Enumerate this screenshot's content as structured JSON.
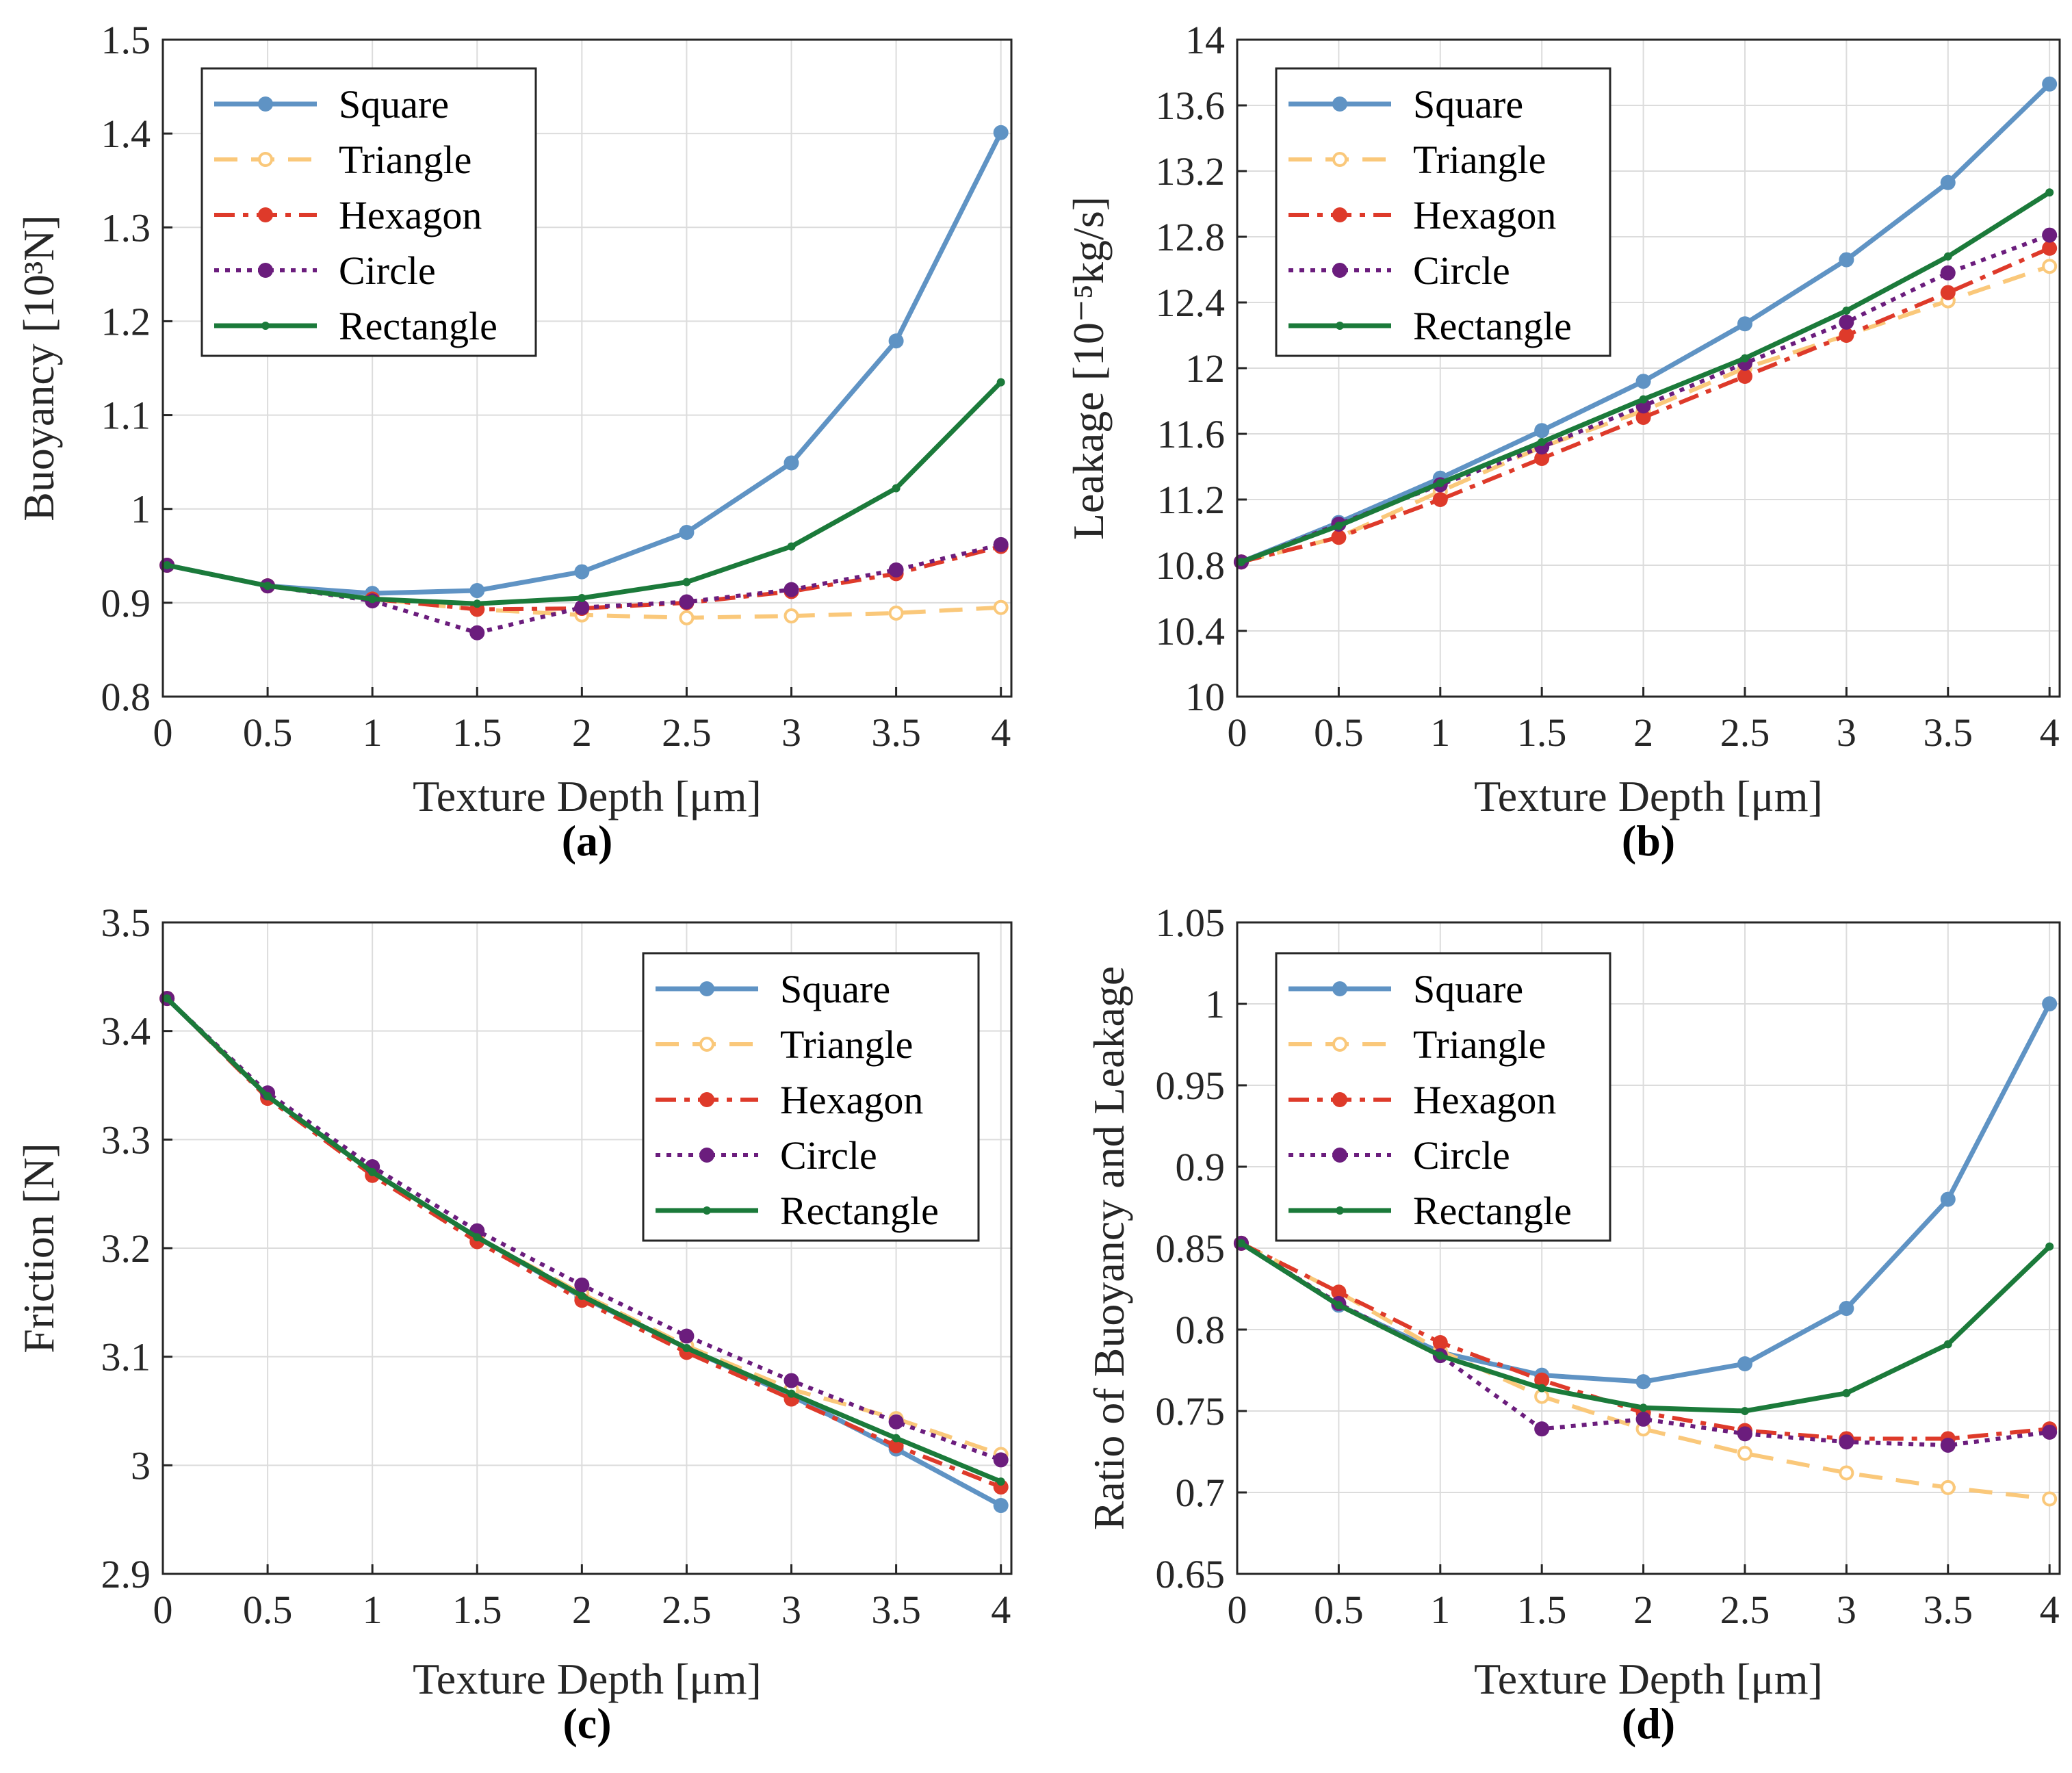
{
  "chart_data": [
    {
      "type": "line",
      "caption": "(a)",
      "xlabel": "Texture Depth [μm]",
      "ylabel": "Buoyancy [10³N]",
      "xlim": [
        0,
        4.05
      ],
      "ylim": [
        0.8,
        1.5
      ],
      "xticks": [
        "0",
        "0.5",
        "1",
        "1.5",
        "2",
        "2.5",
        "3",
        "3.5",
        "4"
      ],
      "yticks": [
        "0.8",
        "0.9",
        "1",
        "1.1",
        "1.2",
        "1.3",
        "1.4",
        "1.5"
      ],
      "legend_position": "top-left",
      "x": [
        0.02,
        0.5,
        1.0,
        1.5,
        2.0,
        2.5,
        3.0,
        3.5,
        4.0
      ],
      "series": [
        {
          "name": "Square",
          "values": [
            0.94,
            0.918,
            0.91,
            0.913,
            0.933,
            0.975,
            1.049,
            1.179,
            1.401
          ]
        },
        {
          "name": "Triangle",
          "values": [
            0.94,
            0.918,
            0.904,
            0.893,
            0.887,
            0.884,
            0.886,
            0.889,
            0.895
          ]
        },
        {
          "name": "Hexagon",
          "values": [
            0.94,
            0.918,
            0.904,
            0.893,
            0.894,
            0.9,
            0.912,
            0.931,
            0.96
          ]
        },
        {
          "name": "Circle",
          "values": [
            0.94,
            0.918,
            0.902,
            0.868,
            0.895,
            0.901,
            0.914,
            0.935,
            0.962
          ]
        },
        {
          "name": "Rectangle",
          "values": [
            0.94,
            0.918,
            0.904,
            0.899,
            0.905,
            0.922,
            0.96,
            1.022,
            1.135
          ]
        }
      ]
    },
    {
      "type": "line",
      "caption": "(b)",
      "xlabel": "Texture Depth [μm]",
      "ylabel": "Leakage [10⁻⁵kg/s]",
      "xlim": [
        0,
        4.05
      ],
      "ylim": [
        10,
        14
      ],
      "xticks": [
        "0",
        "0.5",
        "1",
        "1.5",
        "2",
        "2.5",
        "3",
        "3.5",
        "4"
      ],
      "yticks": [
        "10",
        "10.4",
        "10.8",
        "11.2",
        "11.6",
        "12",
        "12.4",
        "12.8",
        "13.2",
        "13.6",
        "14"
      ],
      "legend_position": "top-left",
      "x": [
        0.02,
        0.5,
        1.0,
        1.5,
        2.0,
        2.5,
        3.0,
        3.5,
        4.0
      ],
      "series": [
        {
          "name": "Square",
          "values": [
            10.82,
            11.06,
            11.33,
            11.62,
            11.92,
            12.27,
            12.66,
            13.13,
            13.73
          ]
        },
        {
          "name": "Triangle",
          "values": [
            10.82,
            10.97,
            11.25,
            11.52,
            11.74,
            12.0,
            12.2,
            12.41,
            12.62
          ]
        },
        {
          "name": "Hexagon",
          "values": [
            10.82,
            10.97,
            11.2,
            11.45,
            11.7,
            11.95,
            12.2,
            12.46,
            12.73
          ]
        },
        {
          "name": "Circle",
          "values": [
            10.82,
            11.05,
            11.29,
            11.52,
            11.77,
            12.03,
            12.28,
            12.58,
            12.81
          ]
        },
        {
          "name": "Rectangle",
          "values": [
            10.82,
            11.04,
            11.3,
            11.55,
            11.81,
            12.06,
            12.35,
            12.68,
            13.07
          ]
        }
      ]
    },
    {
      "type": "line",
      "caption": "(c)",
      "xlabel": "Texture Depth [μm]",
      "ylabel": "Friction [N]",
      "xlim": [
        0,
        4.05
      ],
      "ylim": [
        2.9,
        3.5
      ],
      "xticks": [
        "0",
        "0.5",
        "1",
        "1.5",
        "2",
        "2.5",
        "3",
        "3.5",
        "4"
      ],
      "yticks": [
        "2.9",
        "3",
        "3.1",
        "3.2",
        "3.3",
        "3.4",
        "3.5"
      ],
      "legend_position": "top-right",
      "x": [
        0.02,
        0.5,
        1.0,
        1.5,
        2.0,
        2.5,
        3.0,
        3.5,
        4.0
      ],
      "series": [
        {
          "name": "Square",
          "values": [
            3.43,
            3.34,
            3.27,
            3.21,
            3.155,
            3.108,
            3.064,
            3.015,
            2.963
          ]
        },
        {
          "name": "Triangle",
          "values": [
            3.43,
            3.34,
            3.27,
            3.21,
            3.158,
            3.11,
            3.07,
            3.043,
            3.01
          ]
        },
        {
          "name": "Hexagon",
          "values": [
            3.43,
            3.338,
            3.267,
            3.206,
            3.152,
            3.104,
            3.061,
            3.018,
            2.98
          ]
        },
        {
          "name": "Circle",
          "values": [
            3.43,
            3.343,
            3.275,
            3.216,
            3.166,
            3.119,
            3.078,
            3.04,
            3.005
          ]
        },
        {
          "name": "Rectangle",
          "values": [
            3.43,
            3.34,
            3.27,
            3.21,
            3.156,
            3.108,
            3.066,
            3.025,
            2.985
          ]
        }
      ]
    },
    {
      "type": "line",
      "caption": "(d)",
      "xlabel": "Texture Depth [μm]",
      "ylabel": "Ratio of Buoyancy and Leakage",
      "xlim": [
        0,
        4.05
      ],
      "ylim": [
        0.65,
        1.05
      ],
      "xticks": [
        "0",
        "0.5",
        "1",
        "1.5",
        "2",
        "2.5",
        "3",
        "3.5",
        "4"
      ],
      "yticks": [
        "0.65",
        "0.7",
        "0.75",
        "0.8",
        "0.85",
        "0.9",
        "0.95",
        "1",
        "1.05"
      ],
      "legend_position": "top-left",
      "x": [
        0.02,
        0.5,
        1.0,
        1.5,
        2.0,
        2.5,
        3.0,
        3.5,
        4.0
      ],
      "series": [
        {
          "name": "Square",
          "values": [
            0.853,
            0.815,
            0.786,
            0.772,
            0.768,
            0.779,
            0.813,
            0.88,
            1.0
          ]
        },
        {
          "name": "Triangle",
          "values": [
            0.853,
            0.823,
            0.787,
            0.759,
            0.739,
            0.724,
            0.712,
            0.703,
            0.696
          ]
        },
        {
          "name": "Hexagon",
          "values": [
            0.853,
            0.823,
            0.792,
            0.769,
            0.749,
            0.738,
            0.733,
            0.733,
            0.739
          ]
        },
        {
          "name": "Circle",
          "values": [
            0.853,
            0.816,
            0.784,
            0.739,
            0.745,
            0.736,
            0.731,
            0.729,
            0.737
          ]
        },
        {
          "name": "Rectangle",
          "values": [
            0.853,
            0.815,
            0.784,
            0.764,
            0.752,
            0.75,
            0.761,
            0.791,
            0.851
          ]
        }
      ]
    }
  ],
  "series_styles": {
    "Square": {
      "color": "#5f93c4",
      "dash": "",
      "marker": "filled-circle",
      "width": 7
    },
    "Triangle": {
      "color": "#fac87a",
      "dash": "34 20",
      "marker": "open-circle",
      "width": 6
    },
    "Hexagon": {
      "color": "#de3a2a",
      "dash": "30 12 8 12",
      "marker": "filled-circle",
      "width": 6
    },
    "Circle": {
      "color": "#6b1d7d",
      "dash": "7 9",
      "marker": "filled-circle",
      "width": 6
    },
    "Rectangle": {
      "color": "#1b7a3a",
      "dash": "",
      "marker": "small-dot",
      "width": 7
    }
  }
}
